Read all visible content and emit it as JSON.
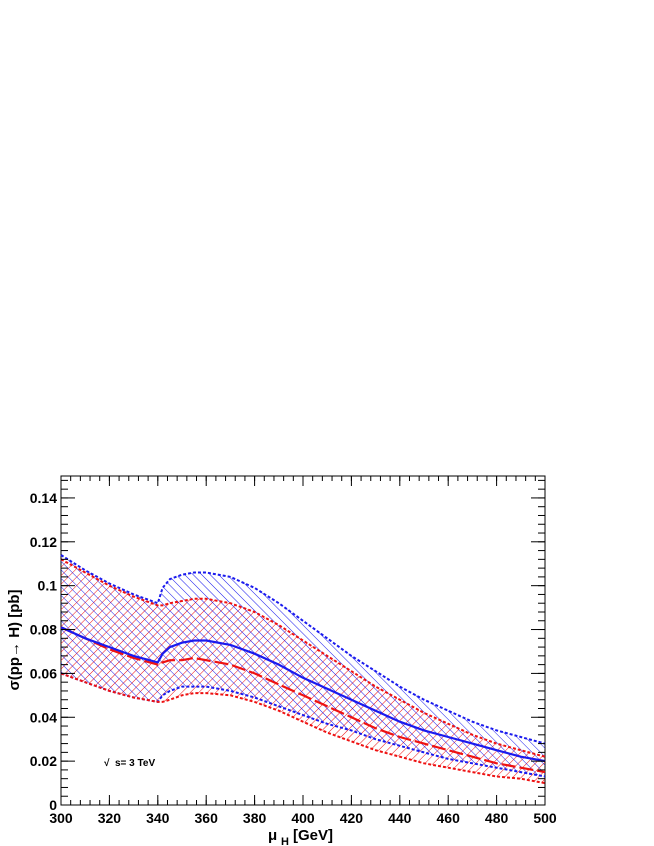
{
  "chart_data": {
    "type": "area",
    "xlabel_main": "μ",
    "xlabel_sub": "H",
    "xlabel_unit": "[GeV]",
    "ylabel": "σ(pp→ H) [pb]",
    "annotation_root": "√",
    "annotation": "s= 3 TeV",
    "xlim": [
      300,
      500
    ],
    "ylim": [
      0,
      0.15
    ],
    "xticks": [
      "300",
      "320",
      "340",
      "360",
      "380",
      "400",
      "420",
      "440",
      "460",
      "480",
      "500"
    ],
    "yticks": [
      "0",
      "0.02",
      "0.04",
      "0.06",
      "0.08",
      "0.1",
      "0.12",
      "0.14"
    ],
    "grid": false,
    "colors": {
      "blue": "#1a1aee",
      "red": "#ee1111",
      "overlap": "#5b1a8a"
    },
    "series": [
      {
        "color": "blue",
        "x": [
          300,
          310,
          320,
          330,
          340,
          342,
          345,
          350,
          355,
          360,
          370,
          380,
          390,
          400,
          410,
          420,
          430,
          440,
          450,
          460,
          470,
          480,
          490,
          500
        ],
        "upper": [
          0.114,
          0.107,
          0.101,
          0.096,
          0.092,
          0.099,
          0.103,
          0.105,
          0.106,
          0.106,
          0.104,
          0.099,
          0.092,
          0.084,
          0.076,
          0.068,
          0.061,
          0.054,
          0.048,
          0.043,
          0.038,
          0.034,
          0.031,
          0.028
        ],
        "central": [
          0.081,
          0.076,
          0.072,
          0.068,
          0.065,
          0.069,
          0.072,
          0.074,
          0.075,
          0.075,
          0.073,
          0.069,
          0.064,
          0.058,
          0.053,
          0.048,
          0.043,
          0.038,
          0.034,
          0.031,
          0.028,
          0.025,
          0.022,
          0.02
        ],
        "lower": [
          0.06,
          0.056,
          0.052,
          0.049,
          0.047,
          0.05,
          0.052,
          0.054,
          0.054,
          0.054,
          0.052,
          0.049,
          0.045,
          0.041,
          0.037,
          0.034,
          0.03,
          0.027,
          0.024,
          0.021,
          0.019,
          0.017,
          0.015,
          0.013
        ]
      },
      {
        "color": "red",
        "x": [
          300,
          310,
          320,
          330,
          340,
          342,
          345,
          350,
          355,
          360,
          370,
          380,
          390,
          400,
          410,
          420,
          430,
          440,
          450,
          460,
          470,
          480,
          490,
          500
        ],
        "upper": [
          0.112,
          0.106,
          0.1,
          0.095,
          0.091,
          0.091,
          0.092,
          0.093,
          0.094,
          0.094,
          0.092,
          0.088,
          0.082,
          0.075,
          0.068,
          0.061,
          0.054,
          0.048,
          0.042,
          0.037,
          0.032,
          0.028,
          0.025,
          0.022
        ],
        "central": [
          0.081,
          0.076,
          0.071,
          0.067,
          0.064,
          0.065,
          0.066,
          0.066,
          0.067,
          0.066,
          0.064,
          0.06,
          0.055,
          0.05,
          0.045,
          0.04,
          0.035,
          0.031,
          0.028,
          0.025,
          0.022,
          0.019,
          0.017,
          0.015
        ],
        "lower": [
          0.06,
          0.056,
          0.052,
          0.049,
          0.047,
          0.047,
          0.048,
          0.05,
          0.051,
          0.051,
          0.05,
          0.047,
          0.043,
          0.038,
          0.033,
          0.029,
          0.025,
          0.022,
          0.019,
          0.017,
          0.015,
          0.013,
          0.012,
          0.01
        ]
      }
    ]
  }
}
